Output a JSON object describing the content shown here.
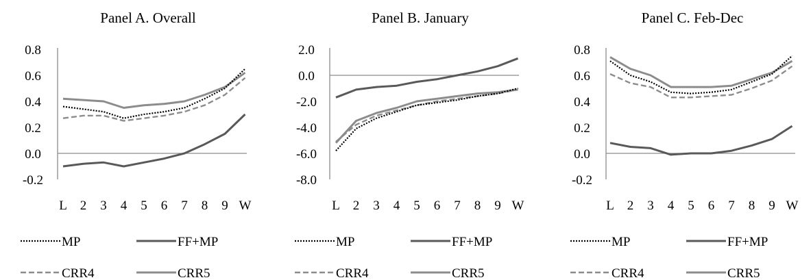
{
  "chart_data": [
    {
      "type": "line",
      "title": "Panel A. Overall",
      "categories": [
        "L",
        "2",
        "3",
        "4",
        "5",
        "6",
        "7",
        "8",
        "9",
        "W"
      ],
      "ylim": [
        -0.2,
        0.8
      ],
      "yticks": [
        "0.8",
        "0.6",
        "0.4",
        "0.2",
        "0.0",
        "-0.2"
      ],
      "xlabel": "",
      "ylabel": "",
      "grid": false,
      "legend_position": "bottom",
      "series": [
        {
          "name": "MP",
          "values": [
            0.36,
            0.34,
            0.32,
            0.27,
            0.3,
            0.32,
            0.35,
            0.42,
            0.5,
            0.65
          ]
        },
        {
          "name": "FF+MP",
          "values": [
            -0.1,
            -0.08,
            -0.07,
            -0.1,
            -0.07,
            -0.04,
            0.0,
            0.07,
            0.15,
            0.3
          ]
        },
        {
          "name": "CRR4",
          "values": [
            0.27,
            0.29,
            0.29,
            0.25,
            0.27,
            0.29,
            0.32,
            0.37,
            0.45,
            0.58
          ]
        },
        {
          "name": "CRR5",
          "values": [
            0.42,
            0.41,
            0.4,
            0.35,
            0.37,
            0.38,
            0.4,
            0.45,
            0.51,
            0.62
          ]
        }
      ]
    },
    {
      "type": "line",
      "title": "Panel B. January",
      "categories": [
        "L",
        "2",
        "3",
        "4",
        "5",
        "6",
        "7",
        "8",
        "9",
        "W"
      ],
      "ylim": [
        -8.0,
        2.0
      ],
      "yticks": [
        "2.0",
        "0.0",
        "-2.0",
        "-4.0",
        "-6.0",
        "-8.0"
      ],
      "xlabel": "",
      "ylabel": "",
      "grid": false,
      "legend_position": "bottom",
      "series": [
        {
          "name": "MP",
          "values": [
            -5.8,
            -4.1,
            -3.3,
            -2.8,
            -2.3,
            -2.1,
            -1.9,
            -1.6,
            -1.4,
            -1.0
          ]
        },
        {
          "name": "FF+MP",
          "values": [
            -1.7,
            -1.1,
            -0.9,
            -0.8,
            -0.5,
            -0.3,
            0.0,
            0.3,
            0.7,
            1.3
          ]
        },
        {
          "name": "CRR4",
          "values": [
            -5.1,
            -3.8,
            -3.1,
            -2.7,
            -2.3,
            -2.0,
            -1.8,
            -1.6,
            -1.4,
            -1.1
          ]
        },
        {
          "name": "CRR5",
          "values": [
            -5.2,
            -3.5,
            -2.9,
            -2.5,
            -2.0,
            -1.8,
            -1.6,
            -1.4,
            -1.3,
            -1.1
          ]
        }
      ]
    },
    {
      "type": "line",
      "title": "Panel C. Feb-Dec",
      "categories": [
        "L",
        "2",
        "3",
        "4",
        "5",
        "6",
        "7",
        "8",
        "9",
        "W"
      ],
      "ylim": [
        -0.2,
        0.8
      ],
      "yticks": [
        "0.8",
        "0.6",
        "0.4",
        "0.2",
        "0.0",
        "-0.2"
      ],
      "xlabel": "",
      "ylabel": "",
      "grid": false,
      "legend_position": "bottom",
      "series": [
        {
          "name": "MP",
          "values": [
            0.71,
            0.6,
            0.55,
            0.47,
            0.46,
            0.47,
            0.49,
            0.55,
            0.61,
            0.75
          ]
        },
        {
          "name": "FF+MP",
          "values": [
            0.08,
            0.05,
            0.04,
            -0.01,
            0.0,
            0.0,
            0.02,
            0.06,
            0.11,
            0.21
          ]
        },
        {
          "name": "CRR4",
          "values": [
            0.61,
            0.54,
            0.51,
            0.43,
            0.43,
            0.44,
            0.45,
            0.5,
            0.56,
            0.67
          ]
        },
        {
          "name": "CRR5",
          "values": [
            0.74,
            0.65,
            0.6,
            0.51,
            0.51,
            0.51,
            0.52,
            0.57,
            0.62,
            0.71
          ]
        }
      ]
    }
  ],
  "styles": {
    "MP": {
      "color": "#000000",
      "dash": "dotted"
    },
    "FF+MP": {
      "color": "#595959",
      "dash": "solid"
    },
    "CRR4": {
      "color": "#8c8c8c",
      "dash": "dashed"
    },
    "CRR5": {
      "color": "#8c8c8c",
      "dash": "solid"
    }
  }
}
